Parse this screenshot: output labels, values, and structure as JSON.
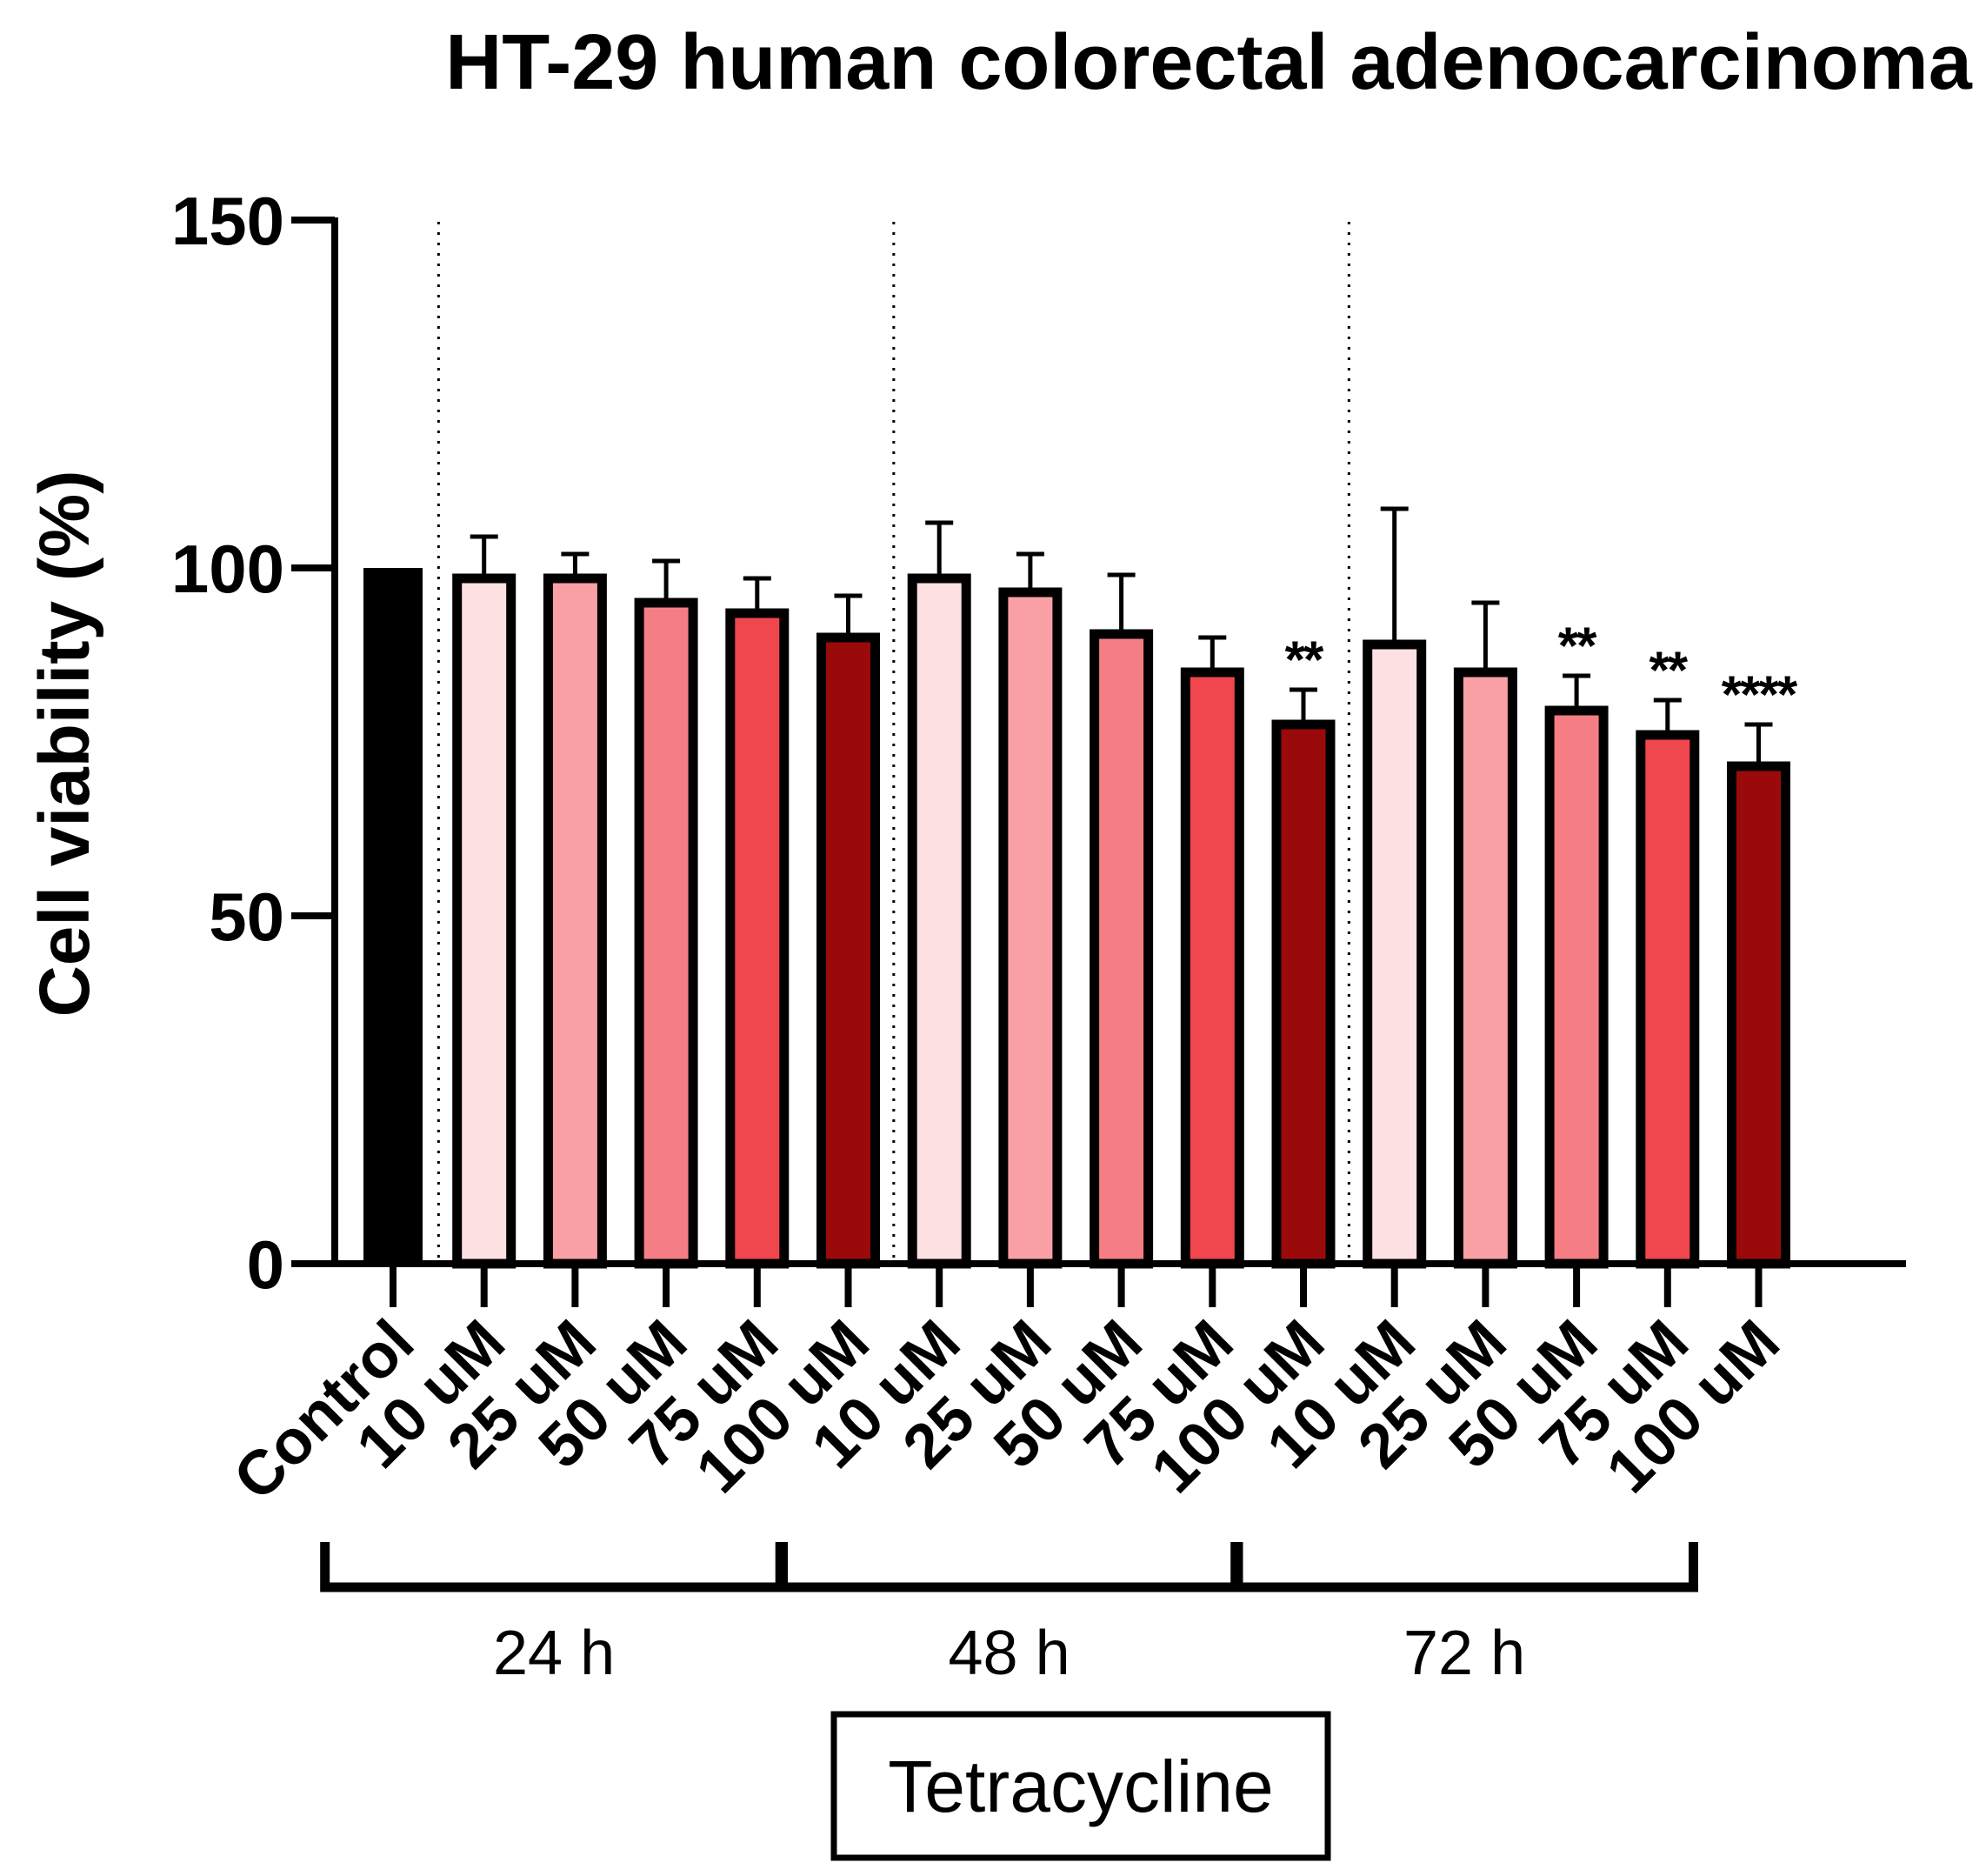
{
  "chart_data": {
    "type": "bar",
    "title": "HT-29  human colorectal adenocarcinoma",
    "ylabel": "Cell viability (%)",
    "xlabel": "",
    "ylim": [
      0,
      150
    ],
    "yticks": [
      "0",
      "50",
      "100",
      "150"
    ],
    "ytick_values": [
      0,
      50,
      100,
      150
    ],
    "categories": [
      "Control",
      "10 uM",
      "25 uM",
      "50 uM",
      "75 uM",
      "100 uM",
      "10 uM",
      "25 uM",
      "50 uM",
      "75 uM",
      "100 uM",
      "10 uM",
      "25 uM",
      "50 uM",
      "75 uM",
      "100 uM"
    ],
    "values": [
      100,
      98.5,
      98.5,
      95,
      93.5,
      90,
      98.5,
      96.5,
      90.5,
      85,
      77.5,
      89,
      85,
      79.5,
      76,
      71.5
    ],
    "errors": [
      0,
      6,
      3.5,
      6,
      5,
      6,
      8,
      5.5,
      8.5,
      5,
      5,
      19.5,
      10,
      5,
      5,
      6
    ],
    "significance": [
      "",
      "",
      "",
      "",
      "",
      "",
      "",
      "",
      "",
      "",
      "**",
      "",
      "",
      "**",
      "**",
      "****"
    ],
    "colors": [
      "#000000",
      "#fde0e2",
      "#f9a0a5",
      "#f57d84",
      "#f0464d",
      "#9b0a0a",
      "#fde0e2",
      "#f9a0a5",
      "#f57d84",
      "#f0464d",
      "#9b0a0a",
      "#fde0e2",
      "#f9a0a5",
      "#f57d84",
      "#f0464d",
      "#9b0a0a"
    ],
    "groups": [
      {
        "label": "24 h",
        "start": 1,
        "end": 5
      },
      {
        "label": "48 h",
        "start": 6,
        "end": 10
      },
      {
        "label": "72 h",
        "start": 11,
        "end": 15
      }
    ],
    "treatment_label": "Tetracycline",
    "grid": false
  }
}
